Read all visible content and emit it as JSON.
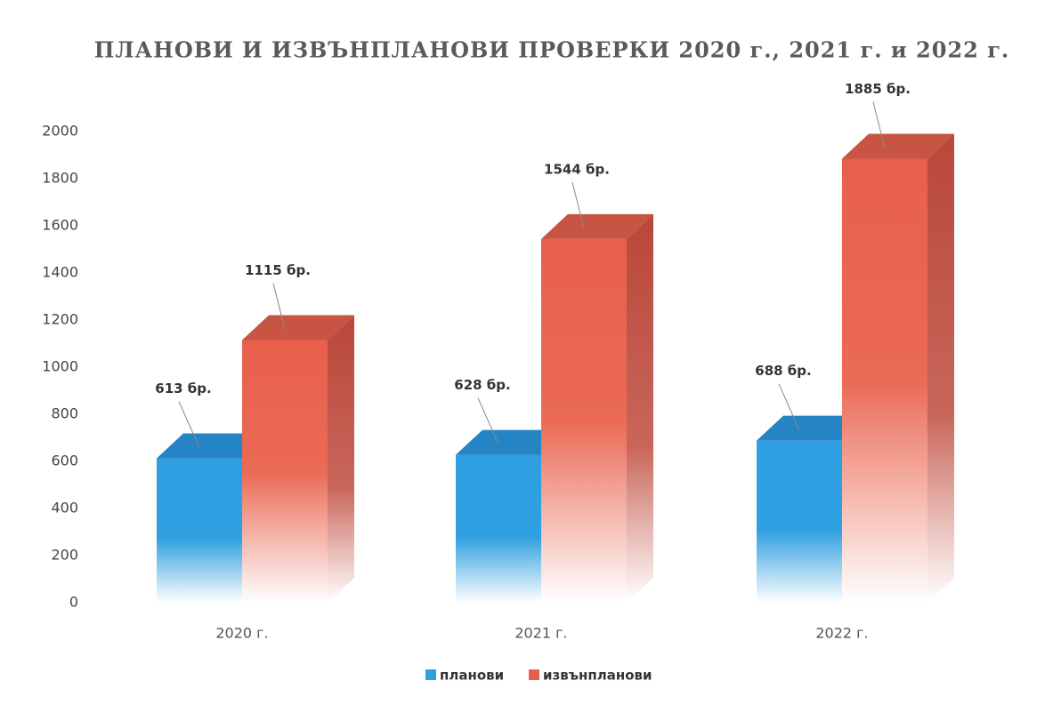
{
  "chart_data": {
    "type": "bar3d",
    "title": "ПЛАНОВИ И ИЗВЪНПЛАНОВИ ПРОВЕРКИ 2020 г., 2021 г. и 2022 г.",
    "categories": [
      "2020 г.",
      "2021 г.",
      "2022 г."
    ],
    "series": [
      {
        "name": "планови",
        "color": "#2e9fe0",
        "values": [
          613,
          628,
          688
        ],
        "value_labels": [
          "613 бр.",
          "628 бр.",
          "688 бр."
        ]
      },
      {
        "name": "извънпланови",
        "color": "#e8604c",
        "values": [
          1115,
          1544,
          1885
        ],
        "value_labels": [
          "1115 бр.",
          "1544 бр.",
          "1885 бр."
        ]
      }
    ],
    "ylim": [
      0,
      2000
    ],
    "yticks": [
      0,
      200,
      400,
      600,
      800,
      1000,
      1200,
      1400,
      1600,
      1800,
      2000
    ],
    "grid": false
  }
}
